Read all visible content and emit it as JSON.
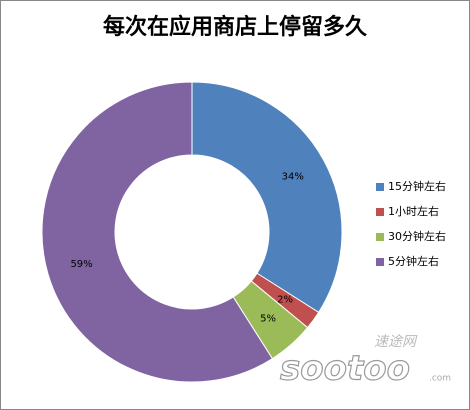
{
  "chart_data": {
    "type": "donut",
    "title": "每次在应用商店上停留多久",
    "categories": [
      "15分钟左右",
      "1小时左右",
      "30分钟左右",
      "5分钟左右"
    ],
    "values": [
      34,
      2,
      5,
      59
    ],
    "value_labels": [
      "34%",
      "2%",
      "5%",
      "59%"
    ],
    "colors": [
      "#4f81bd",
      "#c0504d",
      "#9bbb59",
      "#8064a2"
    ],
    "legend": "right"
  },
  "watermark": {
    "site": "速途网",
    "logo": "sootoo",
    "domain": ".com"
  }
}
